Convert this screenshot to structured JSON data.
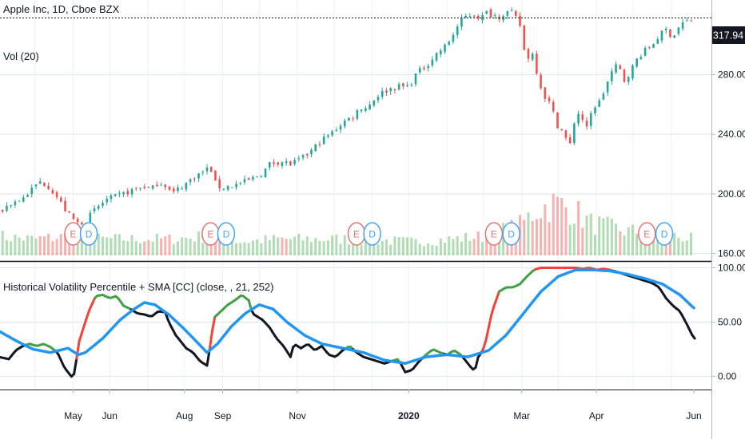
{
  "header": {
    "symbol_title": "Apple Inc, 1D, Cboe BZX",
    "volume_label": "Vol (20)"
  },
  "price_pane": {
    "last_price_label": "317.94",
    "y_ticks": [
      "280.00",
      "240.00",
      "200.00",
      "160.00"
    ],
    "y_tick_values": [
      280,
      240,
      200,
      160
    ]
  },
  "indicator_pane": {
    "title": "Historical Volatility Percentile + SMA [CC] (close, , 21, 252)",
    "y_ticks": [
      "100.00",
      "50.00",
      "0.00"
    ],
    "y_tick_values": [
      100,
      50,
      0
    ]
  },
  "x_axis": {
    "labels": [
      "May",
      "Jun",
      "Aug",
      "Sep",
      "Nov",
      "2020",
      "Mar",
      "Apr",
      "Jun"
    ]
  },
  "events": {
    "earnings_letter": "E",
    "dividend_letter": "D"
  },
  "colors": {
    "up": "#26a69a",
    "down": "#ef5350",
    "sma": "#2196f3",
    "hv_black": "#131722",
    "hv_green": "#43a047",
    "hv_red": "#f44336",
    "earnings": "#e57373",
    "dividend": "#42a5f5"
  },
  "chart_data": [
    {
      "type": "candlestick",
      "title": "Apple Inc, 1D, Cboe BZX",
      "ylim": [
        155,
        330
      ],
      "last_value": 317.94,
      "price_path": [
        [
          0,
          187
        ],
        [
          6,
          193
        ],
        [
          14,
          197
        ],
        [
          20,
          204
        ],
        [
          24,
          208
        ],
        [
          29,
          205
        ],
        [
          33,
          199
        ],
        [
          38,
          190
        ],
        [
          42,
          184
        ],
        [
          46,
          180
        ],
        [
          50,
          182
        ],
        [
          56,
          190
        ],
        [
          62,
          196
        ],
        [
          70,
          199
        ],
        [
          78,
          203
        ],
        [
          84,
          205
        ],
        [
          88,
          203
        ],
        [
          92,
          208
        ],
        [
          96,
          206
        ],
        [
          100,
          200
        ],
        [
          104,
          204
        ],
        [
          108,
          207
        ],
        [
          112,
          211
        ],
        [
          118,
          215
        ],
        [
          122,
          218
        ],
        [
          124,
          208
        ],
        [
          128,
          204
        ],
        [
          136,
          206
        ],
        [
          144,
          209
        ],
        [
          152,
          214
        ],
        [
          156,
          220
        ],
        [
          162,
          222
        ],
        [
          168,
          220
        ],
        [
          174,
          223
        ],
        [
          180,
          229
        ],
        [
          186,
          236
        ],
        [
          192,
          241
        ],
        [
          198,
          248
        ],
        [
          204,
          252
        ],
        [
          208,
          258
        ],
        [
          212,
          258
        ],
        [
          218,
          266
        ],
        [
          224,
          270
        ],
        [
          230,
          272
        ],
        [
          236,
          272
        ],
        [
          240,
          280
        ],
        [
          246,
          286
        ],
        [
          252,
          294
        ],
        [
          258,
          300
        ],
        [
          262,
          308
        ],
        [
          266,
          316
        ],
        [
          270,
          320
        ],
        [
          274,
          320
        ],
        [
          278,
          318
        ],
        [
          280,
          322
        ],
        [
          284,
          320
        ],
        [
          288,
          319
        ],
        [
          292,
          322
        ],
        [
          296,
          321
        ],
        [
          300,
          313
        ],
        [
          302,
          298
        ],
        [
          304,
          290
        ],
        [
          306,
          295
        ],
        [
          308,
          293
        ],
        [
          310,
          280
        ],
        [
          312,
          272
        ],
        [
          314,
          266
        ],
        [
          316,
          262
        ],
        [
          318,
          260
        ],
        [
          320,
          250
        ],
        [
          322,
          245
        ],
        [
          324,
          243
        ],
        [
          326,
          240
        ],
        [
          328,
          225
        ],
        [
          330,
          245
        ],
        [
          332,
          250
        ],
        [
          334,
          255
        ],
        [
          336,
          250
        ],
        [
          338,
          242
        ],
        [
          340,
          250
        ],
        [
          342,
          258
        ],
        [
          344,
          260
        ],
        [
          346,
          262
        ],
        [
          348,
          268
        ],
        [
          350,
          274
        ],
        [
          352,
          280
        ],
        [
          354,
          284
        ],
        [
          356,
          286
        ],
        [
          358,
          282
        ],
        [
          360,
          276
        ],
        [
          364,
          283
        ],
        [
          368,
          292
        ],
        [
          372,
          296
        ],
        [
          376,
          300
        ],
        [
          380,
          306
        ],
        [
          384,
          310
        ],
        [
          388,
          305
        ],
        [
          390,
          310
        ],
        [
          394,
          315
        ],
        [
          398,
          316
        ],
        [
          400,
          317.94
        ]
      ],
      "volume_path": [
        [
          0,
          0.35
        ],
        [
          20,
          0.3
        ],
        [
          40,
          0.35
        ],
        [
          60,
          0.3
        ],
        [
          80,
          0.3
        ],
        [
          100,
          0.3
        ],
        [
          120,
          0.35
        ],
        [
          140,
          0.25
        ],
        [
          160,
          0.3
        ],
        [
          200,
          0.3
        ],
        [
          240,
          0.25
        ],
        [
          280,
          0.35
        ],
        [
          300,
          0.55
        ],
        [
          310,
          0.85
        ],
        [
          320,
          0.95
        ],
        [
          330,
          0.85
        ],
        [
          340,
          0.6
        ],
        [
          360,
          0.45
        ],
        [
          380,
          0.4
        ],
        [
          400,
          0.3
        ]
      ],
      "earnings_days": [
        43,
        122,
        206,
        285,
        373
      ],
      "dividend_days": [
        52,
        131,
        215,
        295,
        383
      ]
    },
    {
      "type": "line",
      "title": "Historical Volatility Percentile + SMA [CC] (close, , 21, 252)",
      "ylim": [
        -12,
        104
      ],
      "series": [
        {
          "values_by_day": [
            [
              0,
              18
            ],
            [
              6,
              16
            ],
            [
              10,
              24
            ],
            [
              14,
              28
            ],
            [
              18,
              30
            ],
            [
              22,
              28
            ],
            [
              26,
              30
            ],
            [
              30,
              27
            ],
            [
              34,
              22
            ],
            [
              38,
              8
            ],
            [
              42,
              0
            ],
            [
              44,
              3
            ],
            [
              46,
              30
            ],
            [
              48,
              40
            ],
            [
              52,
              60
            ],
            [
              56,
              74
            ],
            [
              60,
              75
            ],
            [
              64,
              72
            ],
            [
              68,
              74
            ],
            [
              72,
              65
            ],
            [
              76,
              62
            ],
            [
              80,
              58
            ],
            [
              84,
              57
            ],
            [
              88,
              55
            ],
            [
              92,
              60
            ],
            [
              96,
              59
            ],
            [
              98,
              50
            ],
            [
              102,
              38
            ],
            [
              108,
              26
            ],
            [
              112,
              22
            ],
            [
              116,
              14
            ],
            [
              120,
              10
            ],
            [
              122,
              30
            ],
            [
              124,
              54
            ],
            [
              128,
              60
            ],
            [
              132,
              66
            ],
            [
              136,
              70
            ],
            [
              140,
              75
            ],
            [
              144,
              70
            ],
            [
              146,
              58
            ],
            [
              152,
              52
            ],
            [
              156,
              45
            ],
            [
              160,
              35
            ],
            [
              164,
              28
            ],
            [
              168,
              18
            ],
            [
              170,
              30
            ],
            [
              174,
              26
            ],
            [
              178,
              30
            ],
            [
              182,
              24
            ],
            [
              186,
              28
            ],
            [
              190,
              20
            ],
            [
              194,
              18
            ],
            [
              198,
              24
            ],
            [
              202,
              28
            ],
            [
              206,
              22
            ],
            [
              210,
              18
            ],
            [
              214,
              16
            ],
            [
              218,
              14
            ],
            [
              222,
              12
            ],
            [
              226,
              14
            ],
            [
              230,
              16
            ],
            [
              234,
              4
            ],
            [
              238,
              6
            ],
            [
              242,
              14
            ],
            [
              246,
              20
            ],
            [
              250,
              25
            ],
            [
              254,
              22
            ],
            [
              258,
              20
            ],
            [
              262,
              24
            ],
            [
              266,
              20
            ],
            [
              270,
              12
            ],
            [
              272,
              8
            ],
            [
              274,
              5
            ],
            [
              276,
              18
            ],
            [
              278,
              22
            ],
            [
              280,
              30
            ],
            [
              284,
              60
            ],
            [
              288,
              78
            ],
            [
              292,
              82
            ],
            [
              296,
              82
            ],
            [
              300,
              85
            ],
            [
              304,
              92
            ],
            [
              308,
              98
            ],
            [
              312,
              100
            ],
            [
              316,
              100
            ],
            [
              320,
              100
            ],
            [
              324,
              100
            ],
            [
              328,
              100
            ],
            [
              332,
              100
            ],
            [
              336,
              99
            ],
            [
              340,
              100
            ],
            [
              344,
              98
            ],
            [
              348,
              99
            ],
            [
              352,
              98
            ],
            [
              356,
              96
            ],
            [
              360,
              94
            ],
            [
              364,
              92
            ],
            [
              368,
              90
            ],
            [
              372,
              88
            ],
            [
              376,
              86
            ],
            [
              380,
              82
            ],
            [
              384,
              72
            ],
            [
              388,
              65
            ],
            [
              392,
              60
            ],
            [
              396,
              48
            ],
            [
              400,
              35
            ]
          ]
        },
        {
          "values_by_day": [
            [
              0,
              42
            ],
            [
              10,
              33
            ],
            [
              20,
              25
            ],
            [
              30,
              22
            ],
            [
              40,
              26
            ],
            [
              46,
              20
            ],
            [
              50,
              22
            ],
            [
              60,
              35
            ],
            [
              70,
              52
            ],
            [
              78,
              62
            ],
            [
              84,
              68
            ],
            [
              90,
              66
            ],
            [
              98,
              57
            ],
            [
              106,
              45
            ],
            [
              114,
              32
            ],
            [
              120,
              22
            ],
            [
              126,
              30
            ],
            [
              134,
              46
            ],
            [
              142,
              58
            ],
            [
              150,
              66
            ],
            [
              158,
              62
            ],
            [
              166,
              50
            ],
            [
              176,
              38
            ],
            [
              186,
              30
            ],
            [
              198,
              26
            ],
            [
              210,
              22
            ],
            [
              222,
              15
            ],
            [
              234,
              12
            ],
            [
              246,
              18
            ],
            [
              258,
              20
            ],
            [
              270,
              18
            ],
            [
              282,
              24
            ],
            [
              292,
              38
            ],
            [
              302,
              58
            ],
            [
              312,
              78
            ],
            [
              322,
              92
            ],
            [
              332,
              98
            ],
            [
              342,
              98
            ],
            [
              352,
              97
            ],
            [
              362,
              94
            ],
            [
              372,
              90
            ],
            [
              382,
              85
            ],
            [
              392,
              75
            ],
            [
              400,
              63
            ]
          ]
        }
      ]
    }
  ]
}
